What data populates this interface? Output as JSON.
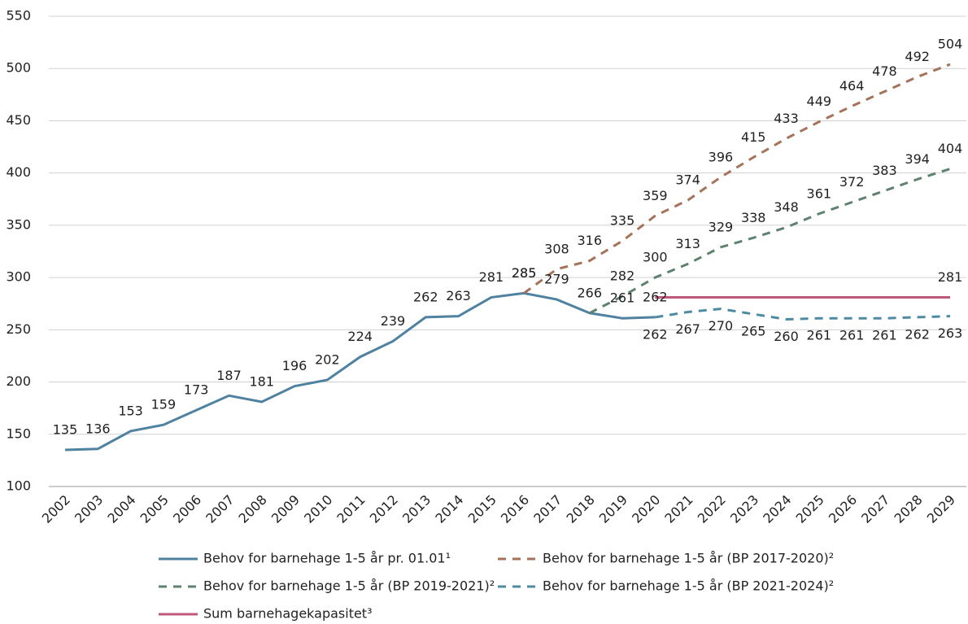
{
  "chart_data": {
    "type": "line",
    "categories": [
      "2002",
      "2003",
      "2004",
      "2005",
      "2006",
      "2007",
      "2008",
      "2009",
      "2010",
      "2011",
      "2012",
      "2013",
      "2014",
      "2015",
      "2016",
      "2017",
      "2018",
      "2019",
      "2020",
      "2021",
      "2022",
      "2023",
      "2024",
      "2025",
      "2026",
      "2027",
      "2028",
      "2029"
    ],
    "series": [
      {
        "name": "Behov for barnehage 1-5 år pr. 01.01¹",
        "color": "#4f81a0",
        "dash": false,
        "values": [
          135,
          136,
          153,
          159,
          173,
          187,
          181,
          196,
          202,
          224,
          239,
          262,
          263,
          281,
          285,
          279,
          266,
          261,
          262,
          null,
          null,
          null,
          null,
          null,
          null,
          null,
          null,
          null
        ]
      },
      {
        "name": "Behov for barnehage 1-5 år (BP 2017-2020)²",
        "color": "#a5725a",
        "dash": true,
        "values": [
          null,
          null,
          null,
          null,
          null,
          null,
          null,
          null,
          null,
          null,
          null,
          null,
          null,
          null,
          285,
          308,
          316,
          335,
          359,
          374,
          396,
          415,
          433,
          449,
          464,
          478,
          492,
          504
        ]
      },
      {
        "name": "Behov for barnehage 1-5 år (BP 2019-2021)²",
        "color": "#5f8270",
        "dash": true,
        "values": [
          null,
          null,
          null,
          null,
          null,
          null,
          null,
          null,
          null,
          null,
          null,
          null,
          null,
          null,
          null,
          null,
          266,
          282,
          300,
          313,
          329,
          338,
          348,
          361,
          372,
          383,
          394,
          404
        ],
        "value_labels": [
          null,
          null,
          null,
          null,
          null,
          null,
          null,
          null,
          null,
          null,
          null,
          null,
          null,
          null,
          null,
          null,
          null,
          "282",
          "300",
          "313",
          "329",
          "338",
          "348",
          "361",
          "372",
          "383",
          "394",
          "404"
        ]
      },
      {
        "name": "Behov for barnehage 1-5 år (BP 2021-2024)²",
        "color": "#4e8ba3",
        "dash": true,
        "label_position": "below",
        "values": [
          null,
          null,
          null,
          null,
          null,
          null,
          null,
          null,
          null,
          null,
          null,
          null,
          null,
          null,
          null,
          null,
          null,
          null,
          262,
          267,
          270,
          265,
          260,
          261,
          261,
          261,
          262,
          263
        ]
      },
      {
        "name": "Sum barnehagekapasitet³",
        "color": "#c0587e",
        "dash": false,
        "values": [
          null,
          null,
          null,
          null,
          null,
          null,
          null,
          null,
          null,
          null,
          null,
          null,
          null,
          null,
          null,
          null,
          null,
          null,
          281,
          281,
          281,
          281,
          281,
          281,
          281,
          281,
          281,
          281
        ],
        "value_labels": [
          null,
          null,
          null,
          null,
          null,
          null,
          null,
          null,
          null,
          null,
          null,
          null,
          null,
          null,
          null,
          null,
          null,
          null,
          null,
          null,
          null,
          null,
          null,
          null,
          null,
          null,
          null,
          "281"
        ]
      }
    ],
    "ylim": [
      100,
      550
    ],
    "yticks": [
      100,
      150,
      200,
      250,
      300,
      350,
      400,
      450,
      500,
      550
    ],
    "grid": true
  }
}
